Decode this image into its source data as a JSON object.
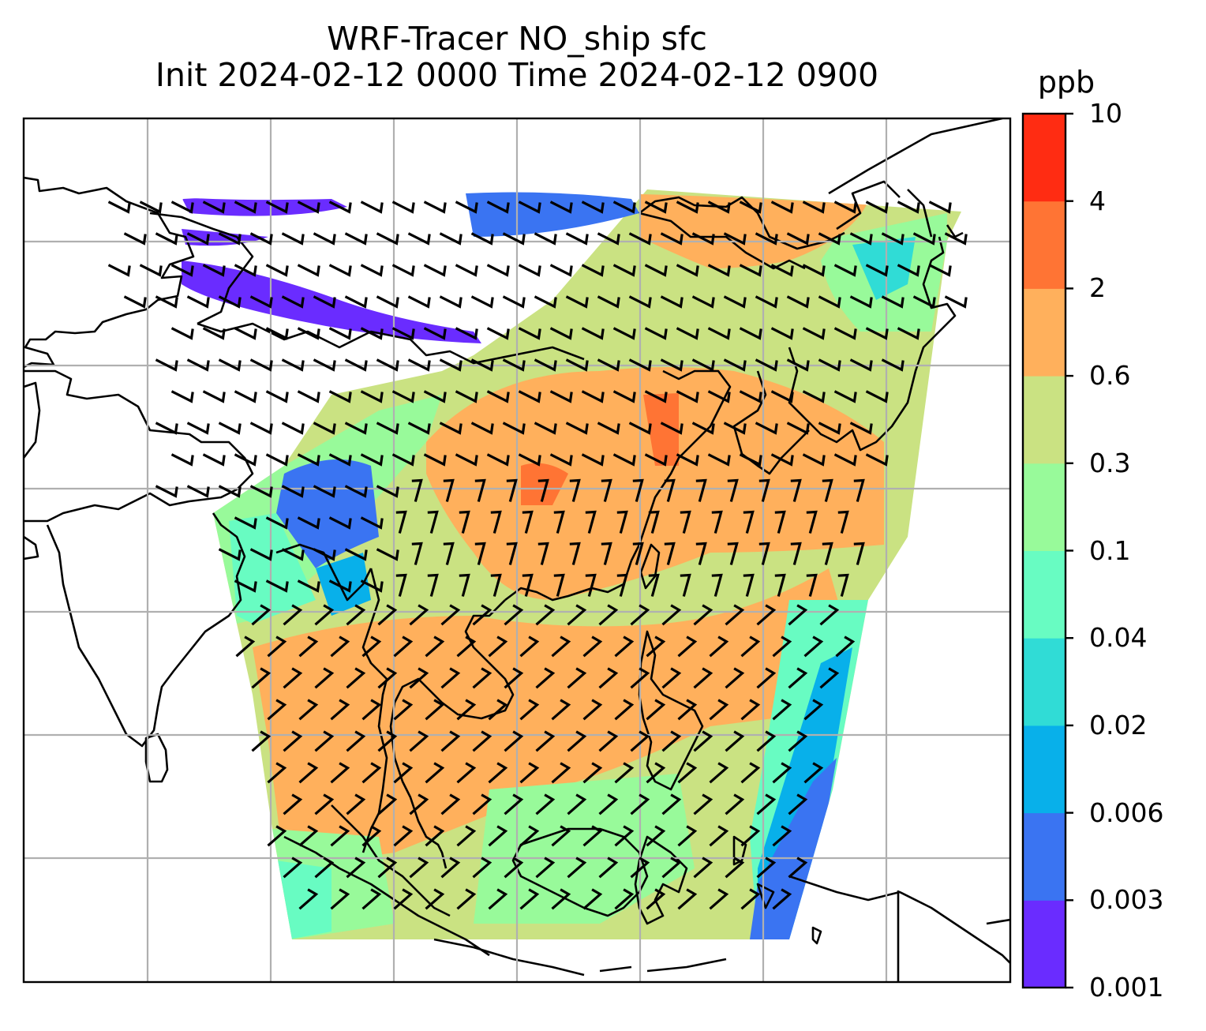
{
  "title": {
    "line1": "WRF-Tracer NO_ship sfc",
    "line2": "Init 2024-02-12 0000 Time 2024-02-12 0900"
  },
  "colorbar": {
    "unit": "ppb",
    "levels": [
      "0.001",
      "0.003",
      "0.006",
      "0.02",
      "0.04",
      "0.1",
      "0.3",
      "0.6",
      "2",
      "4",
      "10"
    ],
    "colors": [
      "#6a2cff",
      "#3a74f2",
      "#08b0ea",
      "#30dcd6",
      "#68fcc2",
      "#98fa9a",
      "#cae282",
      "#ffb05c",
      "#ff7434",
      "#ff2c12"
    ]
  },
  "map": {
    "land_outline_color": "#000000",
    "gridline_color": "#b0b0b0",
    "background_color": "#ffffff",
    "overlays": [
      "concentration-shading",
      "wind-barbs",
      "coastlines",
      "gridlines"
    ]
  }
}
